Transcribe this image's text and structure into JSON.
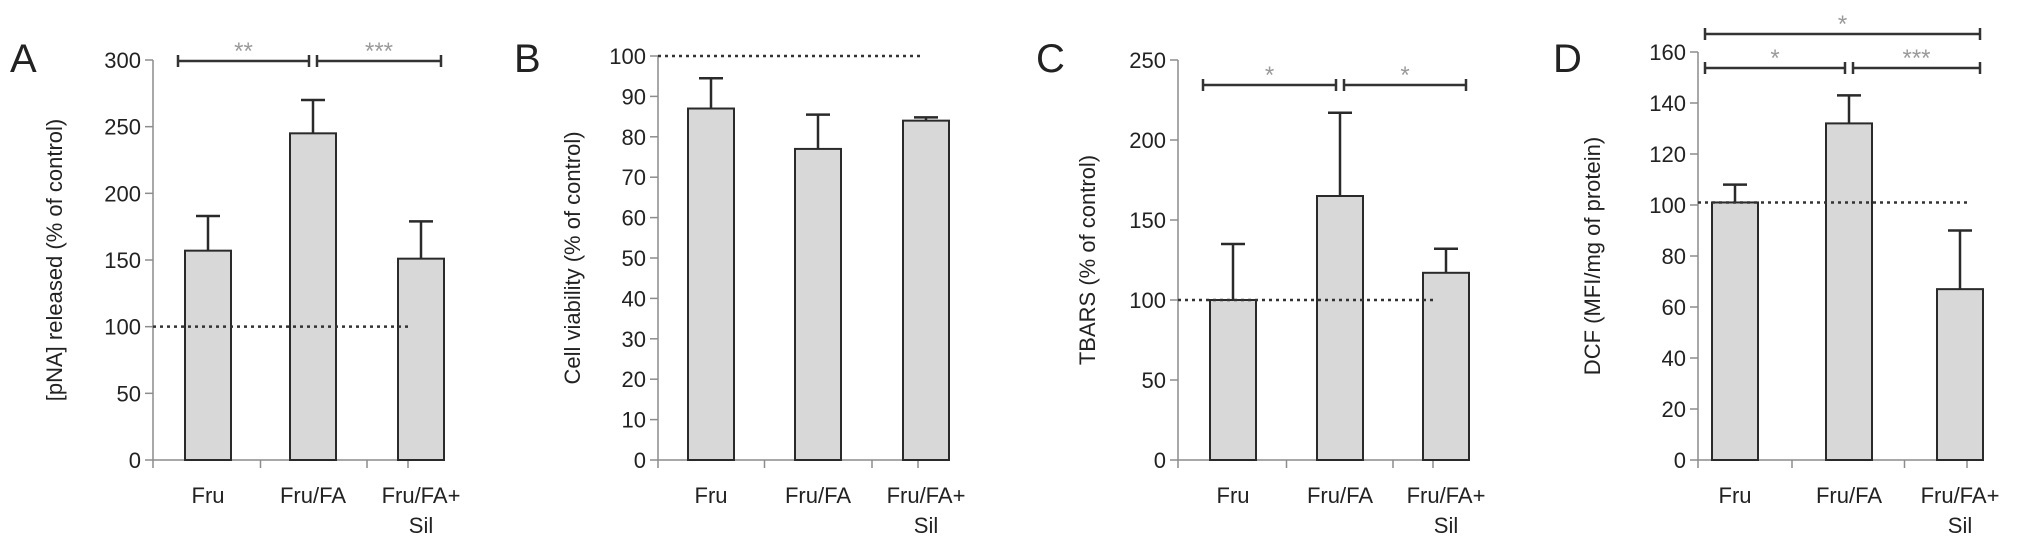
{
  "chart_data": [
    {
      "type": "bar",
      "panel_label": "A",
      "ylabel": "[pNA] released (% of control)",
      "categories": [
        [
          "Fru"
        ],
        [
          "Fru/FA"
        ],
        [
          "Fru/FA+",
          "Sil"
        ]
      ],
      "values": [
        157,
        245,
        151
      ],
      "errors": [
        26,
        25,
        28
      ],
      "ylim": [
        0,
        300
      ],
      "yticks": [
        0,
        50,
        100,
        150,
        200,
        250,
        300
      ],
      "reference_line": 100,
      "significance": [
        {
          "from": 0,
          "to": 1,
          "label": "**",
          "level": 0
        },
        {
          "from": 1,
          "to": 2,
          "label": "***",
          "level": 0
        }
      ]
    },
    {
      "type": "bar",
      "panel_label": "B",
      "ylabel": "Cell viability (% of control)",
      "categories": [
        [
          "Fru"
        ],
        [
          "Fru/FA"
        ],
        [
          "Fru/FA+",
          "Sil"
        ]
      ],
      "values": [
        87,
        77,
        84
      ],
      "errors": [
        7.5,
        8.5,
        0.8
      ],
      "ylim": [
        0,
        100
      ],
      "yticks": [
        0,
        10,
        20,
        30,
        40,
        50,
        60,
        70,
        80,
        90,
        100
      ],
      "reference_line": 100,
      "significance": []
    },
    {
      "type": "bar",
      "panel_label": "C",
      "ylabel": "TBARS (% of control)",
      "categories": [
        [
          "Fru"
        ],
        [
          "Fru/FA"
        ],
        [
          "Fru/FA+",
          "Sil"
        ]
      ],
      "values": [
        100,
        165,
        117
      ],
      "errors": [
        35,
        52,
        15
      ],
      "ylim": [
        0,
        250
      ],
      "yticks": [
        0,
        50,
        100,
        150,
        200,
        250
      ],
      "reference_line": 100,
      "significance": [
        {
          "from": 0,
          "to": 1,
          "label": "*",
          "level": 0
        },
        {
          "from": 1,
          "to": 2,
          "label": "*",
          "level": 0
        }
      ]
    },
    {
      "type": "bar",
      "panel_label": "D",
      "ylabel": "DCF (MFI/mg of protein)",
      "categories": [
        [
          "Fru"
        ],
        [
          "Fru/FA"
        ],
        [
          "Fru/FA+",
          "Sil"
        ]
      ],
      "values": [
        101,
        132,
        67
      ],
      "errors": [
        7,
        11,
        23
      ],
      "ylim": [
        0,
        160
      ],
      "yticks": [
        0,
        20,
        40,
        60,
        80,
        100,
        120,
        140,
        160
      ],
      "reference_line": 101,
      "significance": [
        {
          "from": 0,
          "to": 1,
          "label": "*",
          "level": 0
        },
        {
          "from": 1,
          "to": 2,
          "label": "***",
          "level": 0
        },
        {
          "from": 0,
          "to": 2,
          "label": "*",
          "level": 1
        }
      ]
    }
  ]
}
